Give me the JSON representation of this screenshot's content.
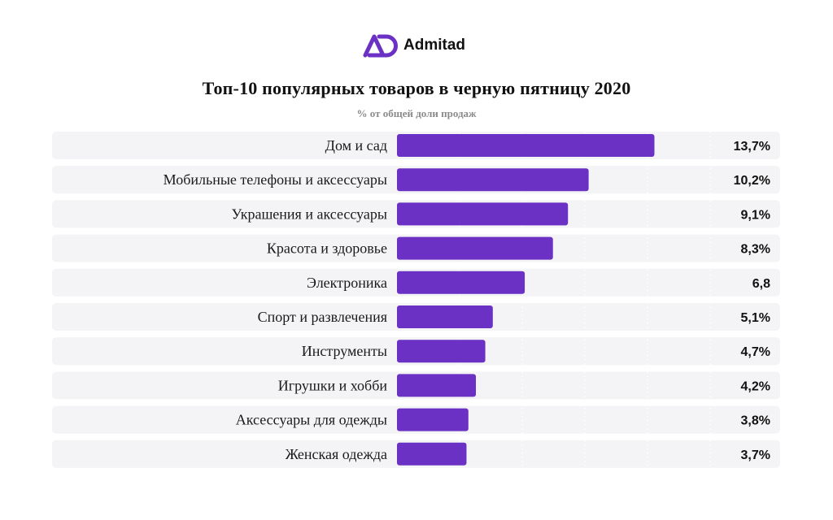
{
  "brand": {
    "name": "Admitad",
    "logo_color": "#6a31c4",
    "logo_icon": "admitad-ad-mark-icon"
  },
  "chart_data": {
    "type": "bar",
    "orientation": "horizontal",
    "title": "Топ-10 популярных товаров в черную пятницу 2020",
    "subtitle": "% от общей доли продаж",
    "categories": [
      "Дом и сад",
      "Мобильные телефоны и аксессуары",
      "Украшения и аксессуары",
      "Красота и здоровье",
      "Электроника",
      "Спорт и развлечения",
      "Инструменты",
      "Игрушки и хобби",
      "Аксессуары для одежды",
      "Женская одежда"
    ],
    "values": [
      13.7,
      10.2,
      9.1,
      8.3,
      6.8,
      5.1,
      4.7,
      4.2,
      3.8,
      3.7
    ],
    "value_labels": [
      "13,7%",
      "10,2%",
      "9,1%",
      "8,3%",
      "6,8",
      "5,1%",
      "4,7%",
      "4,2%",
      "3,8%",
      "3,7%"
    ],
    "bar_color": "#6a31c4",
    "row_background": "#f4f4f6",
    "grid": true,
    "legend": "none"
  }
}
